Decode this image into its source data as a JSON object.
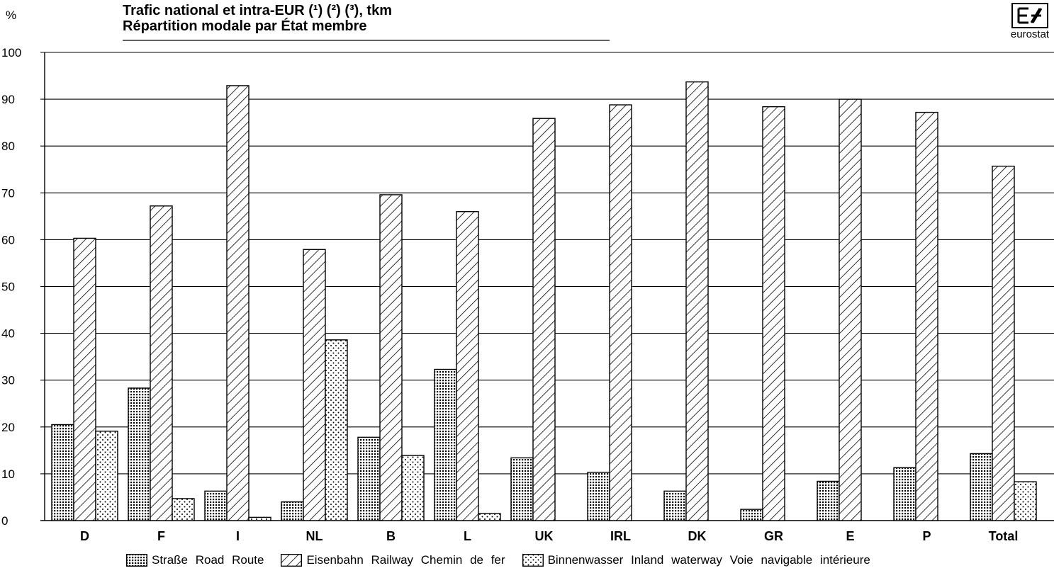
{
  "header": {
    "title_line1": "Trafic national et intra-EUR (¹) (²) (³), tkm",
    "title_line2": "Répartition modale par État membre",
    "unit": "%",
    "logo_text": "eurostat"
  },
  "chart_data": {
    "type": "bar",
    "title": "Trafic national et intra-EUR (¹) (²) (³), tkm — Répartition modale par État membre",
    "ylabel": "%",
    "xlabel": "",
    "ylim": [
      0,
      100
    ],
    "yticks": [
      0,
      10,
      20,
      30,
      40,
      50,
      60,
      70,
      80,
      90,
      100
    ],
    "grid": true,
    "legend_position": "bottom",
    "categories": [
      "D",
      "F",
      "I",
      "NL",
      "B",
      "L",
      "UK",
      "IRL",
      "DK",
      "GR",
      "E",
      "P",
      "Total"
    ],
    "series": [
      {
        "name": "Straße Road Route",
        "pattern": "dotted-dense",
        "values": [
          20.5,
          28.3,
          6.3,
          4.0,
          17.8,
          32.3,
          13.4,
          10.3,
          6.3,
          2.4,
          8.4,
          11.3,
          14.3
        ]
      },
      {
        "name": "Eisenbahn Railway Chemin de fer",
        "pattern": "hatched",
        "values": [
          60.3,
          67.2,
          92.9,
          57.9,
          69.6,
          66.0,
          85.9,
          88.8,
          93.7,
          88.4,
          90.0,
          87.2,
          75.7
        ]
      },
      {
        "name": "Binnenwasser Inland waterway Voie navigable intérieure",
        "pattern": "dotted-sparse",
        "values": [
          19.1,
          4.7,
          0.7,
          38.6,
          13.9,
          1.5,
          null,
          null,
          null,
          null,
          null,
          null,
          8.3
        ]
      }
    ]
  }
}
